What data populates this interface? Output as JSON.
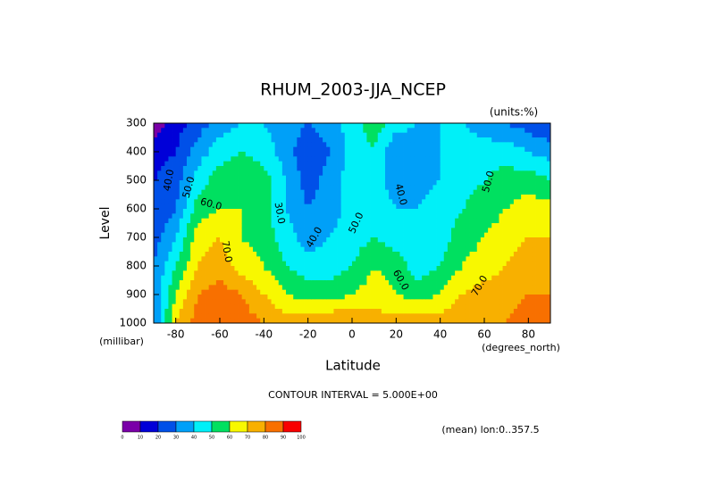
{
  "chart_data": {
    "type": "contour",
    "title": "RHUM_2003-JJA_NCEP",
    "units_note": "(units:%)",
    "y_label": "Level",
    "y_unit": "(millibar)",
    "x_label": "Latitude",
    "x_unit": "(degrees_north)",
    "contour_interval_note": "CONTOUR INTERVAL = 5.000E+00",
    "footnote": "(mean) lon:0..357.5",
    "xlim": [
      -90,
      90
    ],
    "xticks": [
      -80,
      -60,
      -40,
      -20,
      0,
      20,
      40,
      60,
      80
    ],
    "ylim": [
      1000,
      300
    ],
    "yticks": [
      300,
      400,
      500,
      600,
      700,
      800,
      900,
      1000
    ],
    "x": [
      -90,
      -80,
      -70,
      -60,
      -50,
      -40,
      -30,
      -20,
      -10,
      0,
      10,
      20,
      30,
      40,
      50,
      60,
      70,
      80,
      90
    ],
    "y": [
      300,
      400,
      500,
      600,
      700,
      800,
      900,
      1000
    ],
    "z": [
      [
        5,
        15,
        25,
        35,
        40,
        40,
        35,
        30,
        35,
        45,
        55,
        45,
        40,
        40,
        40,
        35,
        30,
        25,
        20
      ],
      [
        15,
        20,
        35,
        45,
        50,
        45,
        35,
        22,
        30,
        45,
        50,
        30,
        35,
        40,
        45,
        45,
        45,
        40,
        35
      ],
      [
        20,
        25,
        45,
        55,
        60,
        55,
        40,
        25,
        35,
        45,
        45,
        35,
        35,
        40,
        45,
        50,
        55,
        55,
        50
      ],
      [
        20,
        30,
        55,
        60,
        60,
        55,
        40,
        30,
        35,
        45,
        45,
        40,
        40,
        45,
        50,
        55,
        60,
        65,
        65
      ],
      [
        25,
        40,
        65,
        70,
        60,
        55,
        45,
        35,
        40,
        45,
        50,
        45,
        40,
        45,
        55,
        60,
        65,
        70,
        70
      ],
      [
        30,
        50,
        70,
        75,
        65,
        60,
        50,
        45,
        45,
        50,
        60,
        55,
        45,
        50,
        60,
        65,
        70,
        75,
        75
      ],
      [
        30,
        60,
        80,
        85,
        80,
        70,
        60,
        55,
        55,
        60,
        65,
        60,
        55,
        60,
        70,
        75,
        75,
        80,
        80
      ],
      [
        30,
        70,
        85,
        85,
        85,
        80,
        75,
        75,
        80,
        80,
        75,
        75,
        75,
        75,
        80,
        80,
        80,
        85,
        90
      ]
    ],
    "levels": [
      0,
      10,
      20,
      30,
      40,
      50,
      60,
      70,
      80,
      90,
      100
    ],
    "colors": [
      "#7a00a8",
      "#0000d8",
      "#0050e8",
      "#00a0f8",
      "#00f0f8",
      "#00e060",
      "#f8f800",
      "#f8b000",
      "#f87000",
      "#f80000"
    ],
    "contour_labels": [
      {
        "value": 40,
        "label": "40.0"
      },
      {
        "value": 50,
        "label": "50.0"
      },
      {
        "value": 60,
        "label": "60.0"
      },
      {
        "value": 70,
        "label": "70.0"
      },
      {
        "value": 30,
        "label": "30.0"
      },
      {
        "value": 40,
        "label": "40.0"
      },
      {
        "value": 50,
        "label": "50.0"
      },
      {
        "value": 40,
        "label": "40.0"
      },
      {
        "value": 50,
        "label": "50.0"
      },
      {
        "value": 60,
        "label": "60.0"
      },
      {
        "value": 70,
        "label": "70.0"
      }
    ]
  }
}
